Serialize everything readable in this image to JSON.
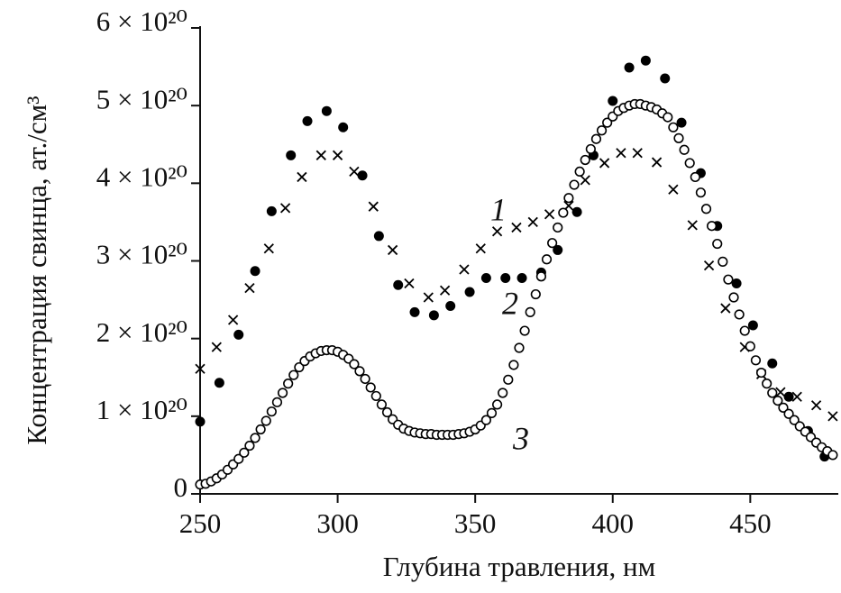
{
  "chart_data": {
    "type": "scatter",
    "x_label": "Глубина травления, нм",
    "y_label": "Концентрация свинца, ат./см³",
    "xlim": [
      250,
      482
    ],
    "xticks": [
      250,
      300,
      350,
      400,
      450
    ],
    "ylim": [
      0,
      6e+20
    ],
    "yticks": [
      0,
      {
        "value": 1e+20,
        "label": "1 × 10²⁰"
      },
      {
        "value": 2e+20,
        "label": "2 × 10²⁰"
      },
      {
        "value": 3e+20,
        "label": "3 × 10²⁰"
      },
      {
        "value": 4e+20,
        "label": "4 × 10²⁰"
      },
      {
        "value": 5e+20,
        "label": "5 × 10²⁰"
      },
      {
        "value": 6e+20,
        "label": "6 × 10²⁰"
      }
    ],
    "series": [
      {
        "name": "1",
        "color": "#000000",
        "marker": "x",
        "x": [
          250,
          256,
          262,
          268,
          275,
          281,
          287,
          294,
          300,
          306,
          313,
          320,
          326,
          333,
          339,
          346,
          352,
          358,
          365,
          371,
          377,
          384,
          390,
          397,
          403,
          409,
          416,
          422,
          429,
          435,
          441,
          448,
          454,
          461,
          467,
          474,
          480
        ],
        "values": [
          1.61e+20,
          1.89e+20,
          2.24e+20,
          2.65e+20,
          3.16e+20,
          3.68e+20,
          4.08e+20,
          4.36e+20,
          4.36e+20,
          4.15e+20,
          3.7e+20,
          3.14e+20,
          2.71e+20,
          2.53e+20,
          2.62e+20,
          2.89e+20,
          3.16e+20,
          3.38e+20,
          3.43e+20,
          3.5e+20,
          3.6e+20,
          3.71e+20,
          4.04e+20,
          4.26e+20,
          4.39e+20,
          4.39e+20,
          4.27e+20,
          3.92e+20,
          3.46e+20,
          2.94e+20,
          2.39e+20,
          1.89e+20,
          1.54e+20,
          1.31e+20,
          1.25e+20,
          1.14e+20,
          1e+20
        ]
      },
      {
        "name": "2",
        "color": "#000000",
        "marker": "filled",
        "x": [
          250,
          257,
          264,
          270,
          276,
          283,
          289,
          296,
          302,
          309,
          315,
          322,
          328,
          335,
          341,
          348,
          354,
          361,
          367,
          374,
          380,
          387,
          393,
          400,
          406,
          412,
          419,
          425,
          432,
          438,
          445,
          451,
          458,
          464,
          471,
          477
        ],
        "values": [
          9.3e+19,
          1.43e+20,
          2.05e+20,
          2.87e+20,
          3.64e+20,
          4.36e+20,
          4.8e+20,
          4.93e+20,
          4.72e+20,
          4.1e+20,
          3.32e+20,
          2.69e+20,
          2.34e+20,
          2.3e+20,
          2.42e+20,
          2.6e+20,
          2.78e+20,
          2.78e+20,
          2.78e+20,
          2.85e+20,
          3.14e+20,
          3.63e+20,
          4.36e+20,
          5.06e+20,
          5.49e+20,
          5.58e+20,
          5.35e+20,
          4.78e+20,
          4.13e+20,
          3.45e+20,
          2.71e+20,
          2.17e+20,
          1.68e+20,
          1.25e+20,
          8.1e+19,
          4.8e+19
        ]
      },
      {
        "name": "3",
        "color": "#000000",
        "marker": "open",
        "x": [
          250,
          252,
          254,
          256,
          258,
          260,
          262,
          264,
          266,
          268,
          270,
          272,
          274,
          276,
          278,
          280,
          282,
          284,
          286,
          288,
          290,
          292,
          294,
          296,
          298,
          300,
          302,
          304,
          306,
          308,
          310,
          312,
          314,
          316,
          318,
          320,
          322,
          324,
          326,
          328,
          330,
          332,
          334,
          336,
          338,
          340,
          342,
          344,
          346,
          348,
          350,
          352,
          354,
          356,
          358,
          360,
          362,
          364,
          366,
          368,
          370,
          372,
          374,
          376,
          378,
          380,
          382,
          384,
          386,
          388,
          390,
          392,
          394,
          396,
          398,
          400,
          402,
          404,
          406,
          408,
          410,
          412,
          414,
          416,
          418,
          420,
          422,
          424,
          426,
          428,
          430,
          432,
          434,
          436,
          438,
          440,
          442,
          444,
          446,
          448,
          450,
          452,
          454,
          456,
          458,
          460,
          462,
          464,
          466,
          468,
          470,
          472,
          474,
          476,
          478,
          480
        ],
        "values": [
          1.2e+19,
          1.3e+19,
          1.6e+19,
          2e+19,
          2.5e+19,
          3.1e+19,
          3.8e+19,
          4.5e+19,
          5.3e+19,
          6.2e+19,
          7.2e+19,
          8.3e+19,
          9.4e+19,
          1.06e+20,
          1.18e+20,
          1.3e+20,
          1.42e+20,
          1.53e+20,
          1.63e+20,
          1.71e+20,
          1.77e+20,
          1.81e+20,
          1.84e+20,
          1.85e+20,
          1.85e+20,
          1.83e+20,
          1.79e+20,
          1.74e+20,
          1.67e+20,
          1.58e+20,
          1.48e+20,
          1.37e+20,
          1.26e+20,
          1.15e+20,
          1.05e+20,
          9.6e+19,
          8.9e+19,
          8.4e+19,
          8.1e+19,
          7.9e+19,
          7.8e+19,
          7.7e+19,
          7.7e+19,
          7.6e+19,
          7.6e+19,
          7.6e+19,
          7.6e+19,
          7.7e+19,
          7.8e+19,
          8e+19,
          8.3e+19,
          8.8e+19,
          9.5e+19,
          1.04e+20,
          1.15e+20,
          1.3e+20,
          1.47e+20,
          1.66e+20,
          1.88e+20,
          2.1e+20,
          2.34e+20,
          2.57e+20,
          2.8e+20,
          3.02e+20,
          3.23e+20,
          3.43e+20,
          3.62e+20,
          3.81e+20,
          3.98e+20,
          4.15e+20,
          4.3e+20,
          4.44e+20,
          4.57e+20,
          4.68e+20,
          4.78e+20,
          4.86e+20,
          4.93e+20,
          4.97e+20,
          5e+20,
          5.02e+20,
          5.02e+20,
          5e+20,
          4.98e+20,
          4.95e+20,
          4.9e+20,
          4.85e+20,
          4.72e+20,
          4.58e+20,
          4.43e+20,
          4.26e+20,
          4.08e+20,
          3.88e+20,
          3.67e+20,
          3.45e+20,
          3.22e+20,
          2.99e+20,
          2.76e+20,
          2.53e+20,
          2.31e+20,
          2.1e+20,
          1.9e+20,
          1.72e+20,
          1.56e+20,
          1.42e+20,
          1.3e+20,
          1.2e+20,
          1.11e+20,
          1.03e+20,
          9.5e+19,
          8.7e+19,
          8e+19,
          7.3e+19,
          6.6e+19,
          6e+19,
          5.5e+19,
          5e+19
        ]
      }
    ]
  }
}
